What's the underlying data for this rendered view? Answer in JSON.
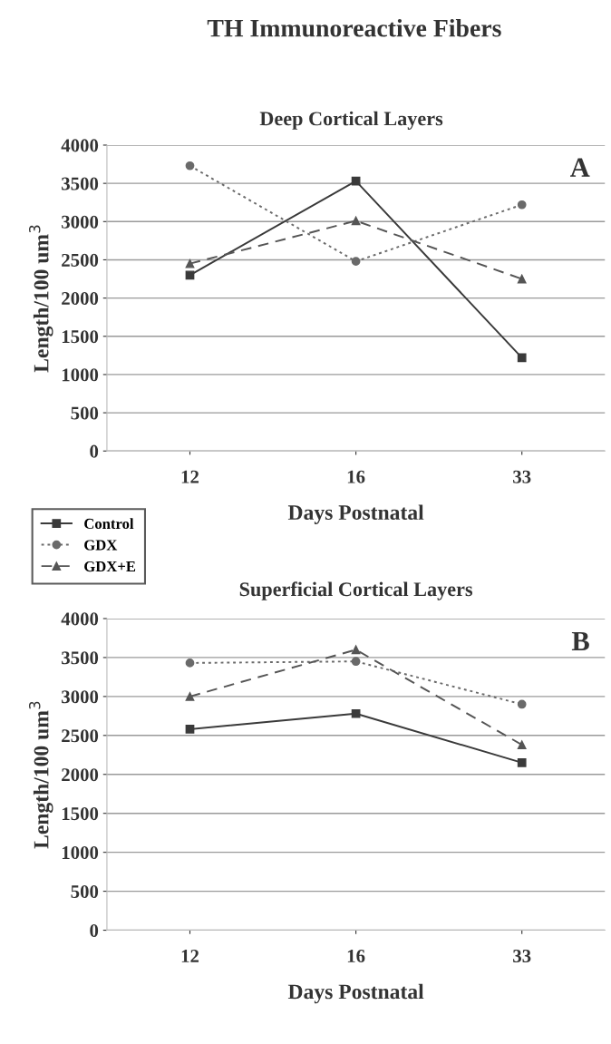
{
  "chart_data": [
    {
      "type": "line",
      "title": "TH Immunoreactive Fibers",
      "subtitle": "Deep Cortical Layers",
      "xlabel": "Days Postnatal",
      "ylabel": "Length/100 um$^{3}$",
      "categories": [
        "12",
        "16",
        "33"
      ],
      "ylim": [
        0,
        4000
      ],
      "yticks": [
        0,
        500,
        1000,
        1500,
        2000,
        2500,
        3000,
        3500,
        4000
      ],
      "grid": "y",
      "legend": "bottom left",
      "annotations": [
        "A"
      ],
      "series": [
        {
          "name": "Control",
          "color": "#3a3a3a",
          "marker": "square",
          "line_style": "solid",
          "values": [
            2300,
            3530,
            1220
          ]
        },
        {
          "name": "GDX",
          "color": "#6a6a6a",
          "marker": "circle",
          "line_style": "dotted",
          "values": [
            3730,
            2480,
            3220
          ]
        },
        {
          "name": "GDX+E",
          "color": "#555555",
          "marker": "triangle",
          "line_style": "dashed",
          "values": [
            2450,
            3010,
            2250
          ]
        }
      ]
    },
    {
      "type": "line",
      "title": "Superficial Cortical Layers",
      "xlabel": "Days Postnatal",
      "ylabel": "Length/100 um$^{3}$",
      "categories": [
        "12",
        "16",
        "33"
      ],
      "ylim": [
        0,
        4000
      ],
      "yticks": [
        0,
        500,
        1000,
        1500,
        2000,
        2500,
        3000,
        3500,
        4000
      ],
      "grid": "y",
      "annotations": [
        "B"
      ],
      "series": [
        {
          "color": "#3a3a3a",
          "marker": "square",
          "line_style": "solid",
          "values": [
            2580,
            2780,
            2150
          ]
        },
        {
          "color": "#6a6a6a",
          "marker": "circle",
          "line_style": "dotted",
          "values": [
            3430,
            3450,
            2900
          ]
        },
        {
          "color": "#555555",
          "marker": "triangle",
          "line_style": "dashed",
          "values": [
            3000,
            3600,
            2380
          ]
        }
      ]
    }
  ]
}
